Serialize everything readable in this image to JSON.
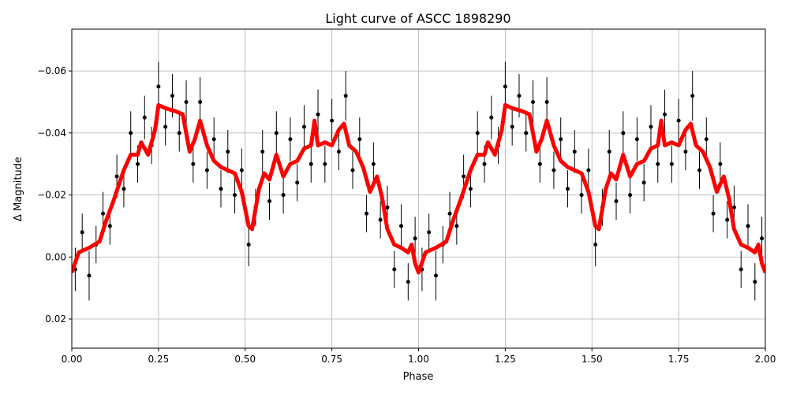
{
  "chart_data": {
    "type": "line",
    "title": "Light curve of ASCC 1898290",
    "xlabel": "Phase",
    "ylabel": "Δ Magnitude",
    "xlim": [
      0,
      2
    ],
    "ylim": [
      0.0294,
      -0.0735
    ],
    "y_inverted": true,
    "grid": true,
    "xticks": [
      0,
      0.25,
      0.5,
      0.75,
      1.0,
      1.25,
      1.5,
      1.75,
      2.0
    ],
    "xtick_labels": [
      "0.00",
      "0.25",
      "0.50",
      "0.75",
      "1.00",
      "1.25",
      "1.50",
      "1.75",
      "2.00"
    ],
    "yticks": [
      -0.06,
      -0.04,
      -0.02,
      0.0,
      0.02
    ],
    "ytick_labels": [
      "−0.06",
      "−0.04",
      "−0.02",
      "0.00",
      "0.02"
    ],
    "series": [
      {
        "kind": "errorbar-scatter",
        "color": "#000000",
        "points": [
          [
            0.01,
            0.004,
            0.007
          ],
          [
            0.03,
            -0.008,
            0.006
          ],
          [
            0.05,
            0.006,
            0.008
          ],
          [
            0.07,
            -0.004,
            0.006
          ],
          [
            0.09,
            -0.014,
            0.007
          ],
          [
            0.11,
            -0.01,
            0.006
          ],
          [
            0.13,
            -0.026,
            0.007
          ],
          [
            0.15,
            -0.022,
            0.006
          ],
          [
            0.17,
            -0.04,
            0.007
          ],
          [
            0.19,
            -0.03,
            0.006
          ],
          [
            0.21,
            -0.045,
            0.007
          ],
          [
            0.23,
            -0.036,
            0.006
          ],
          [
            0.25,
            -0.055,
            0.008
          ],
          [
            0.27,
            -0.042,
            0.006
          ],
          [
            0.29,
            -0.052,
            0.007
          ],
          [
            0.31,
            -0.04,
            0.006
          ],
          [
            0.33,
            -0.05,
            0.007
          ],
          [
            0.35,
            -0.03,
            0.006
          ],
          [
            0.37,
            -0.05,
            0.008
          ],
          [
            0.39,
            -0.028,
            0.006
          ],
          [
            0.41,
            -0.038,
            0.007
          ],
          [
            0.43,
            -0.022,
            0.006
          ],
          [
            0.45,
            -0.034,
            0.007
          ],
          [
            0.47,
            -0.02,
            0.006
          ],
          [
            0.49,
            -0.028,
            0.007
          ],
          [
            0.51,
            -0.004,
            0.007
          ],
          [
            0.53,
            -0.016,
            0.006
          ],
          [
            0.55,
            -0.034,
            0.007
          ],
          [
            0.57,
            -0.018,
            0.006
          ],
          [
            0.59,
            -0.04,
            0.007
          ],
          [
            0.61,
            -0.02,
            0.006
          ],
          [
            0.63,
            -0.038,
            0.007
          ],
          [
            0.65,
            -0.024,
            0.006
          ],
          [
            0.67,
            -0.042,
            0.007
          ],
          [
            0.69,
            -0.03,
            0.006
          ],
          [
            0.71,
            -0.046,
            0.008
          ],
          [
            0.73,
            -0.03,
            0.006
          ],
          [
            0.75,
            -0.044,
            0.007
          ],
          [
            0.77,
            -0.034,
            0.006
          ],
          [
            0.79,
            -0.052,
            0.008
          ],
          [
            0.81,
            -0.028,
            0.006
          ],
          [
            0.83,
            -0.038,
            0.007
          ],
          [
            0.85,
            -0.014,
            0.006
          ],
          [
            0.87,
            -0.03,
            0.007
          ],
          [
            0.89,
            -0.012,
            0.006
          ],
          [
            0.91,
            -0.016,
            0.007
          ],
          [
            0.93,
            0.004,
            0.006
          ],
          [
            0.95,
            -0.01,
            0.007
          ],
          [
            0.97,
            0.008,
            0.006
          ],
          [
            0.99,
            -0.006,
            0.007
          ],
          [
            1.01,
            0.004,
            0.007
          ],
          [
            1.03,
            -0.008,
            0.006
          ],
          [
            1.05,
            0.006,
            0.008
          ],
          [
            1.07,
            -0.004,
            0.006
          ],
          [
            1.09,
            -0.014,
            0.007
          ],
          [
            1.11,
            -0.01,
            0.006
          ],
          [
            1.13,
            -0.026,
            0.007
          ],
          [
            1.15,
            -0.022,
            0.006
          ],
          [
            1.17,
            -0.04,
            0.007
          ],
          [
            1.19,
            -0.03,
            0.006
          ],
          [
            1.21,
            -0.045,
            0.007
          ],
          [
            1.23,
            -0.036,
            0.006
          ],
          [
            1.25,
            -0.055,
            0.008
          ],
          [
            1.27,
            -0.042,
            0.006
          ],
          [
            1.29,
            -0.052,
            0.007
          ],
          [
            1.31,
            -0.04,
            0.006
          ],
          [
            1.33,
            -0.05,
            0.007
          ],
          [
            1.35,
            -0.03,
            0.006
          ],
          [
            1.37,
            -0.05,
            0.008
          ],
          [
            1.39,
            -0.028,
            0.006
          ],
          [
            1.41,
            -0.038,
            0.007
          ],
          [
            1.43,
            -0.022,
            0.006
          ],
          [
            1.45,
            -0.034,
            0.007
          ],
          [
            1.47,
            -0.02,
            0.006
          ],
          [
            1.49,
            -0.028,
            0.007
          ],
          [
            1.51,
            -0.004,
            0.007
          ],
          [
            1.53,
            -0.016,
            0.006
          ],
          [
            1.55,
            -0.034,
            0.007
          ],
          [
            1.57,
            -0.018,
            0.006
          ],
          [
            1.59,
            -0.04,
            0.007
          ],
          [
            1.61,
            -0.02,
            0.006
          ],
          [
            1.63,
            -0.038,
            0.007
          ],
          [
            1.65,
            -0.024,
            0.006
          ],
          [
            1.67,
            -0.042,
            0.007
          ],
          [
            1.69,
            -0.03,
            0.006
          ],
          [
            1.71,
            -0.046,
            0.008
          ],
          [
            1.73,
            -0.03,
            0.006
          ],
          [
            1.75,
            -0.044,
            0.007
          ],
          [
            1.77,
            -0.034,
            0.006
          ],
          [
            1.79,
            -0.052,
            0.008
          ],
          [
            1.81,
            -0.028,
            0.006
          ],
          [
            1.83,
            -0.038,
            0.007
          ],
          [
            1.85,
            -0.014,
            0.006
          ],
          [
            1.87,
            -0.03,
            0.007
          ],
          [
            1.89,
            -0.012,
            0.006
          ],
          [
            1.91,
            -0.016,
            0.007
          ],
          [
            1.93,
            0.004,
            0.006
          ],
          [
            1.95,
            -0.01,
            0.007
          ],
          [
            1.97,
            0.008,
            0.006
          ],
          [
            1.99,
            -0.006,
            0.007
          ]
        ]
      },
      {
        "kind": "line",
        "color": "#ff0000",
        "x": [
          0,
          0.02,
          0.05,
          0.08,
          0.1,
          0.12,
          0.15,
          0.17,
          0.19,
          0.2,
          0.22,
          0.24,
          0.25,
          0.27,
          0.3,
          0.32,
          0.34,
          0.355,
          0.37,
          0.39,
          0.41,
          0.43,
          0.45,
          0.47,
          0.49,
          0.51,
          0.52,
          0.54,
          0.555,
          0.57,
          0.59,
          0.61,
          0.63,
          0.65,
          0.67,
          0.69,
          0.7,
          0.71,
          0.73,
          0.75,
          0.77,
          0.785,
          0.8,
          0.82,
          0.84,
          0.86,
          0.88,
          0.895,
          0.91,
          0.93,
          0.95,
          0.97,
          0.98,
          0.99,
          1.0,
          1.02,
          1.05,
          1.08,
          1.1,
          1.12,
          1.15,
          1.17,
          1.19,
          1.2,
          1.22,
          1.24,
          1.25,
          1.27,
          1.3,
          1.32,
          1.34,
          1.355,
          1.37,
          1.39,
          1.41,
          1.43,
          1.45,
          1.47,
          1.49,
          1.51,
          1.52,
          1.54,
          1.555,
          1.57,
          1.59,
          1.61,
          1.63,
          1.65,
          1.67,
          1.69,
          1.7,
          1.71,
          1.73,
          1.75,
          1.77,
          1.785,
          1.8,
          1.82,
          1.84,
          1.86,
          1.88,
          1.895,
          1.91,
          1.93,
          1.95,
          1.97,
          1.98,
          1.99,
          2.0
        ],
        "y": [
          0.005,
          -0.0015,
          -0.003,
          -0.005,
          -0.012,
          -0.018,
          -0.028,
          -0.033,
          -0.033,
          -0.037,
          -0.033,
          -0.041,
          -0.049,
          -0.048,
          -0.047,
          -0.046,
          -0.034,
          -0.038,
          -0.044,
          -0.036,
          -0.031,
          -0.029,
          -0.028,
          -0.027,
          -0.021,
          -0.01,
          -0.009,
          -0.022,
          -0.027,
          -0.025,
          -0.033,
          -0.026,
          -0.03,
          -0.031,
          -0.035,
          -0.036,
          -0.044,
          -0.036,
          -0.037,
          -0.036,
          -0.041,
          -0.043,
          -0.036,
          -0.034,
          -0.029,
          -0.021,
          -0.026,
          -0.019,
          -0.009,
          -0.004,
          -0.003,
          -0.0015,
          -0.004,
          0.002,
          0.005,
          -0.0015,
          -0.003,
          -0.005,
          -0.012,
          -0.018,
          -0.028,
          -0.033,
          -0.033,
          -0.037,
          -0.033,
          -0.041,
          -0.049,
          -0.048,
          -0.047,
          -0.046,
          -0.034,
          -0.038,
          -0.044,
          -0.036,
          -0.031,
          -0.029,
          -0.028,
          -0.027,
          -0.021,
          -0.01,
          -0.009,
          -0.022,
          -0.027,
          -0.025,
          -0.033,
          -0.026,
          -0.03,
          -0.031,
          -0.035,
          -0.036,
          -0.044,
          -0.036,
          -0.037,
          -0.036,
          -0.041,
          -0.043,
          -0.036,
          -0.034,
          -0.029,
          -0.021,
          -0.026,
          -0.019,
          -0.009,
          -0.004,
          -0.003,
          -0.0015,
          -0.004,
          0.002,
          0.005
        ]
      }
    ]
  }
}
